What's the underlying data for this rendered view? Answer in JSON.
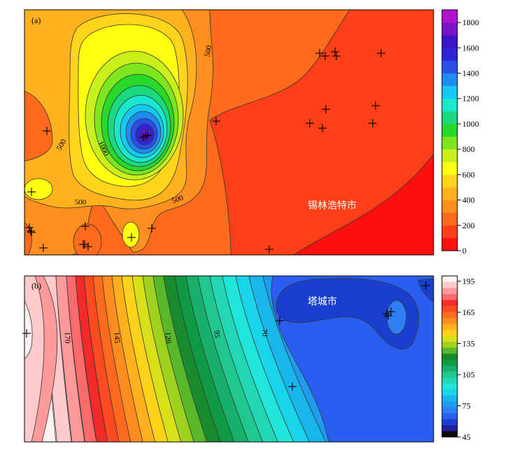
{
  "chart_data": [
    {
      "type": "heatmap",
      "panel_label": "(a)",
      "annotation": "锡林浩特市",
      "contour_labels": [
        "500",
        "500",
        "1000",
        "500",
        "500"
      ],
      "colorbar": {
        "ticks": [
          "1800",
          "1600",
          "1400",
          "1200",
          "1000",
          "800",
          "600",
          "400",
          "200",
          "0"
        ],
        "range": [
          0,
          1900
        ],
        "colors": [
          "#ff1010",
          "#ff3f17",
          "#ff6a1c",
          "#ff8f1f",
          "#ffb21d",
          "#ffd51b",
          "#ffff10",
          "#c9f01a",
          "#7ce61e",
          "#28d82a",
          "#1ad97e",
          "#19e8cf",
          "#16c9f0",
          "#1f8cf2",
          "#2a50e8",
          "#2f24d6",
          "#3f14c8",
          "#7a12c8",
          "#b112cf"
        ]
      },
      "markers": 27
    },
    {
      "type": "heatmap",
      "panel_label": "(b)",
      "annotation": "塔城市",
      "contour_labels": [
        "170",
        "145",
        "120",
        "95",
        "70"
      ],
      "colorbar": {
        "ticks": [
          "195",
          "165",
          "135",
          "105",
          "75",
          "45"
        ],
        "range": [
          45,
          200
        ],
        "colors": [
          "#0a0a0a",
          "#1f1fa0",
          "#1a3fcf",
          "#2a5ef0",
          "#2f7ef5",
          "#1f9cf0",
          "#19b6ec",
          "#1ad4ea",
          "#1fe6d8",
          "#22d8b4",
          "#20c890",
          "#16b06a",
          "#109a46",
          "#1a8a2e",
          "#58b82a",
          "#9fd21e",
          "#d8e019",
          "#ffd21a",
          "#ffb01c",
          "#ff8c1e",
          "#ff6a1e",
          "#ff4a22",
          "#f52a2a",
          "#ff6a6a",
          "#ff9a9a",
          "#ffcaca",
          "#fff2f2"
        ]
      },
      "markers": 7
    }
  ]
}
